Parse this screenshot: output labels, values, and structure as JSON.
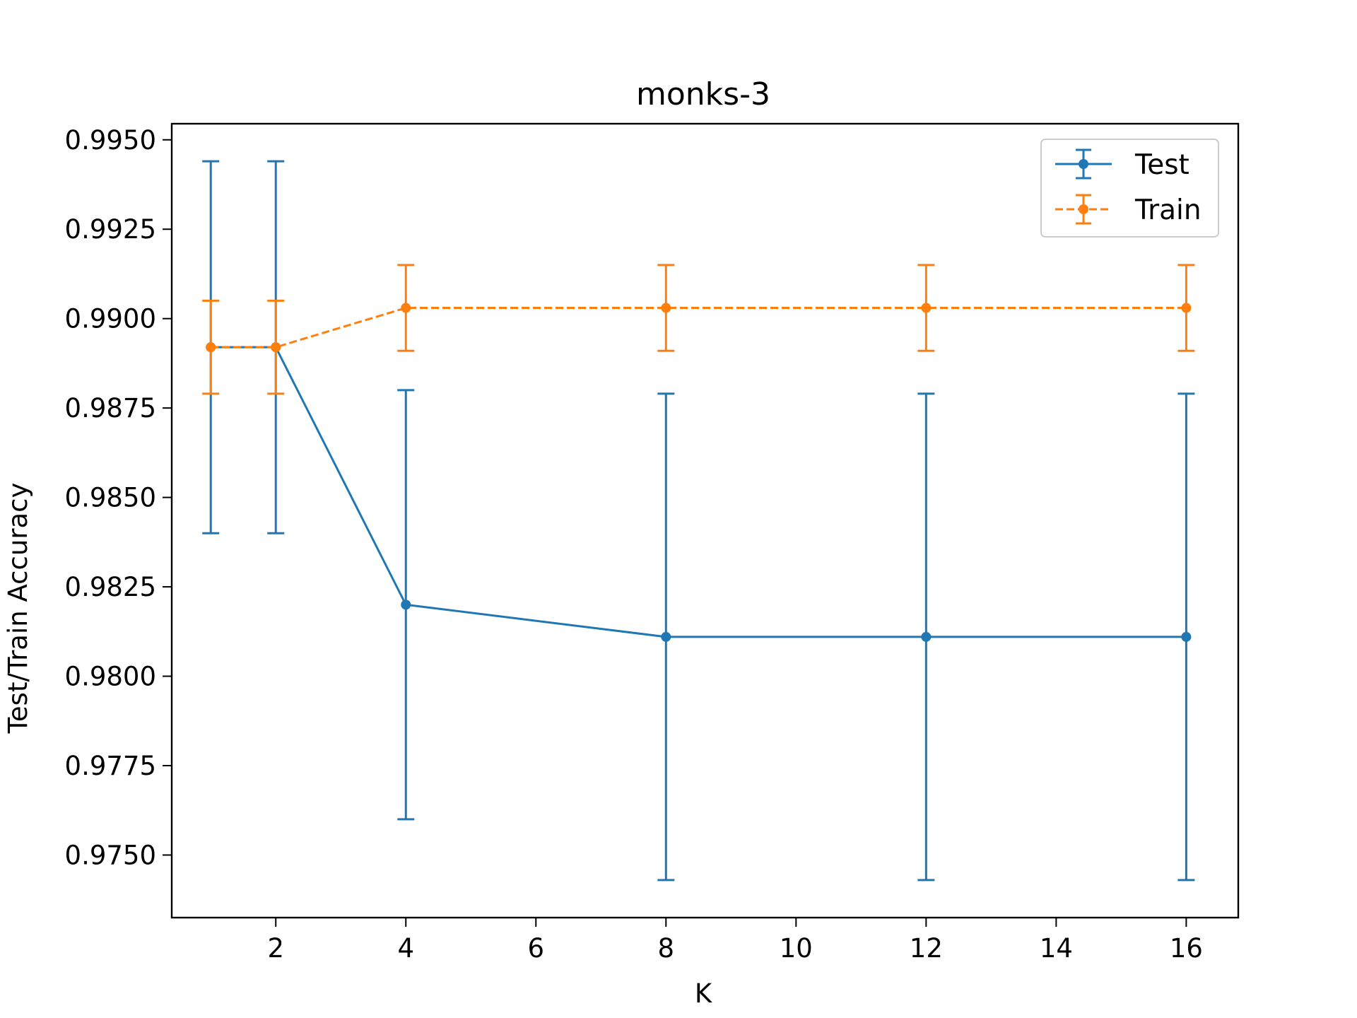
{
  "chart_data": {
    "type": "line",
    "title": "monks-3",
    "xlabel": "K",
    "ylabel": "Test/Train Accuracy",
    "x": [
      1,
      2,
      4,
      8,
      12,
      16
    ],
    "xlim": [
      0.4,
      16.8
    ],
    "ylim": [
      0.97325,
      0.99545
    ],
    "xticks": [
      2,
      4,
      6,
      8,
      10,
      12,
      14,
      16
    ],
    "xtick_labels": [
      "2",
      "4",
      "6",
      "8",
      "10",
      "12",
      "14",
      "16"
    ],
    "yticks": [
      0.975,
      0.9775,
      0.98,
      0.9825,
      0.985,
      0.9875,
      0.99,
      0.9925,
      0.995
    ],
    "ytick_labels": [
      "0.9750",
      "0.9775",
      "0.9800",
      "0.9825",
      "0.9850",
      "0.9875",
      "0.9900",
      "0.9925",
      "0.9950"
    ],
    "grid": false,
    "legend_position": "top-right",
    "series": [
      {
        "name": "Test",
        "color": "#1f77b4",
        "line_style": "solid",
        "values": [
          0.9892,
          0.9892,
          0.982,
          0.9811,
          0.9811,
          0.9811
        ],
        "errors": [
          0.0052,
          0.0052,
          0.006,
          0.0068,
          0.0068,
          0.0068
        ]
      },
      {
        "name": "Train",
        "color": "#ff7f0e",
        "line_style": "dashed",
        "values": [
          0.9892,
          0.9892,
          0.9903,
          0.9903,
          0.9903,
          0.9903
        ],
        "errors": [
          0.0013,
          0.0013,
          0.0012,
          0.0012,
          0.0012,
          0.0012
        ]
      }
    ]
  }
}
